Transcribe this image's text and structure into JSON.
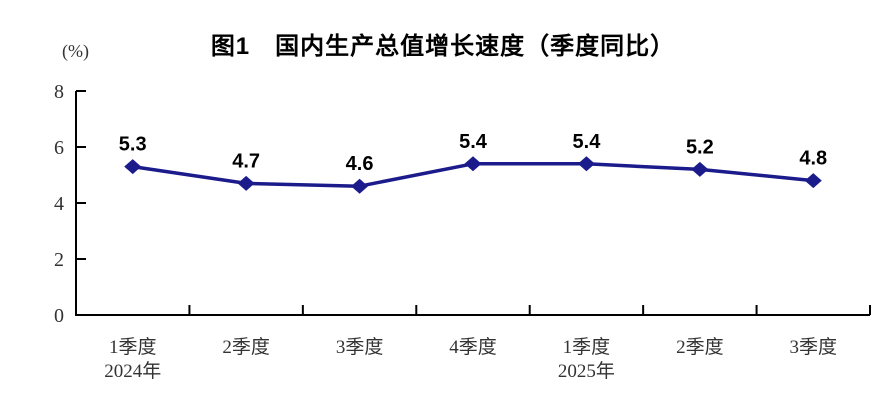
{
  "page": {
    "background_color": "#ffffff"
  },
  "chart_data": {
    "type": "line",
    "title": "图1　国内生产总值增长速度（季度同比）",
    "unit_label": "(%)",
    "categories": [
      [
        "1季度",
        "2024年"
      ],
      [
        "2季度"
      ],
      [
        "3季度"
      ],
      [
        "4季度"
      ],
      [
        "1季度",
        "2025年"
      ],
      [
        "2季度"
      ],
      [
        "3季度"
      ]
    ],
    "values": [
      5.3,
      4.7,
      4.6,
      5.4,
      5.4,
      5.2,
      4.8
    ],
    "data_labels": [
      "5.3",
      "4.7",
      "4.6",
      "5.4",
      "5.4",
      "5.2",
      "4.8"
    ],
    "xlabel": "",
    "ylabel": "(%)",
    "ylim": [
      0,
      8
    ],
    "yticks": [
      0,
      2,
      4,
      6,
      8
    ],
    "grid": false,
    "legend_position": "none",
    "marker_shape": "diamond",
    "line_color": "#1b1b8c",
    "marker_color": "#1b1b8c",
    "axis_color": "#000000",
    "tick_label_color": "#333333",
    "data_label_color": "#000000"
  }
}
